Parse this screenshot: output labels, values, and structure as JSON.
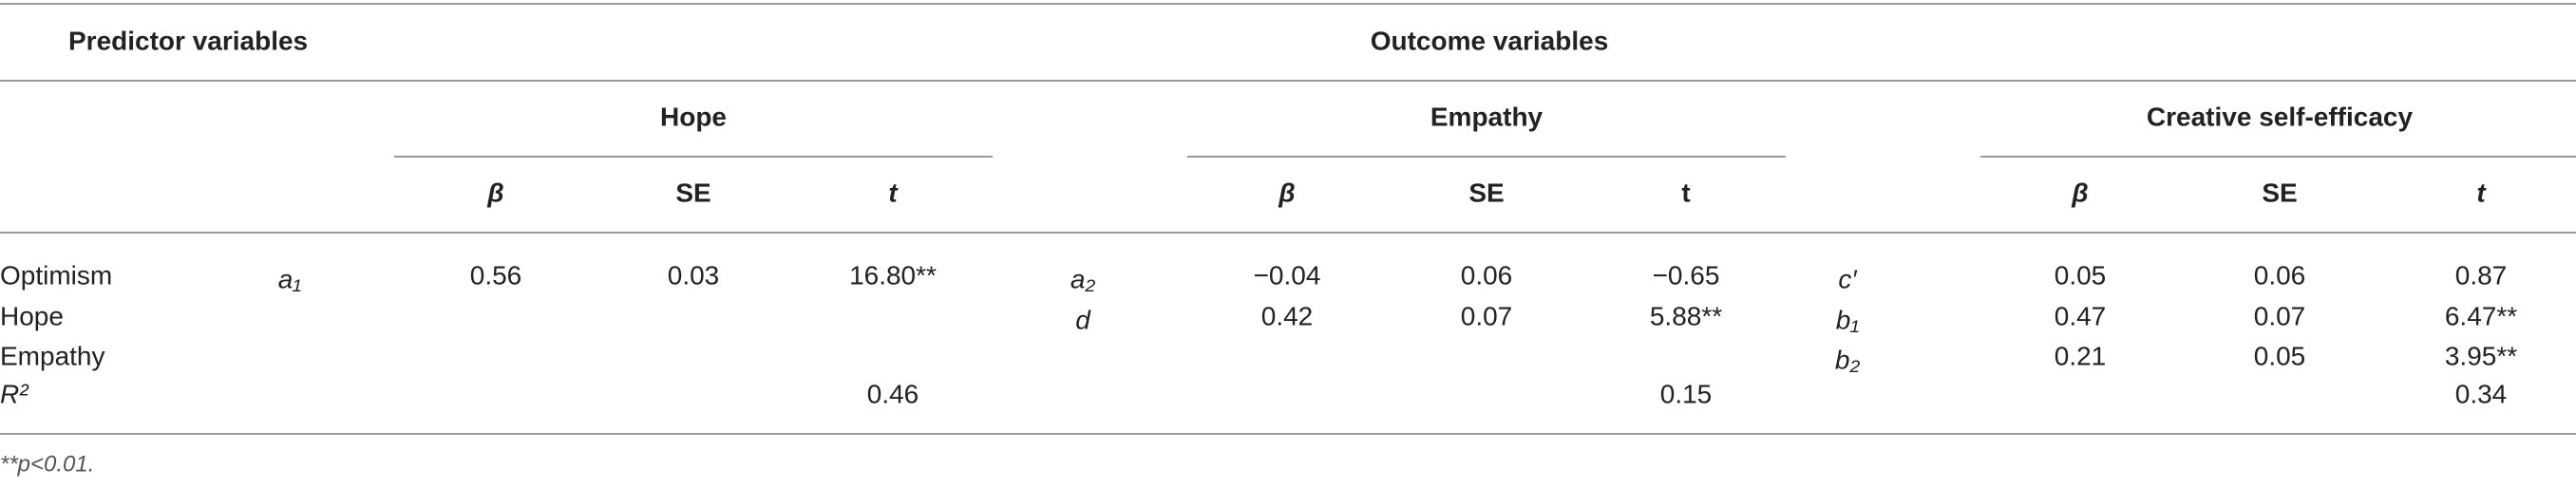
{
  "header": {
    "predictor": "Predictor variables",
    "outcome": "Outcome variables"
  },
  "groups": [
    {
      "name": "Hope",
      "columns": [
        "β",
        "SE",
        "t"
      ]
    },
    {
      "name": "Empathy",
      "columns": [
        "β",
        "SE",
        "t"
      ]
    },
    {
      "name": "Creative self-efficacy",
      "columns": [
        "β",
        "SE",
        "t"
      ]
    }
  ],
  "rows": [
    {
      "predictor": "Optimism",
      "cells": [
        "a₁",
        "0.56",
        "0.03",
        "16.80**",
        "a₂",
        "−0.04",
        "0.06",
        "−0.65",
        "c′",
        "0.05",
        "0.06",
        "0.87"
      ]
    },
    {
      "predictor": "Hope",
      "cells": [
        null,
        null,
        null,
        null,
        "d",
        "0.42",
        "0.07",
        "5.88**",
        "b₁",
        "0.47",
        "0.07",
        "6.47**"
      ]
    },
    {
      "predictor": "Empathy",
      "cells": [
        null,
        null,
        null,
        null,
        null,
        null,
        null,
        null,
        "b₂",
        "0.21",
        "0.05",
        "3.95**"
      ]
    },
    {
      "predictor": "R²",
      "cells": [
        null,
        null,
        null,
        "0.46",
        null,
        null,
        null,
        "0.15",
        null,
        null,
        null,
        "0.34"
      ]
    }
  ],
  "footnote": "**p<0.01."
}
